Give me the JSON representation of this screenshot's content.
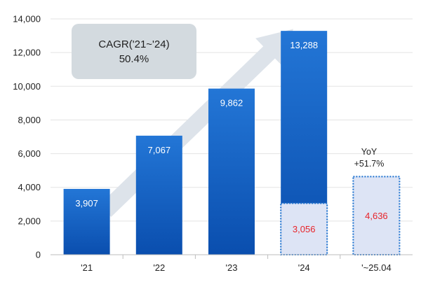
{
  "chart_data": {
    "type": "bar",
    "categories": [
      "'21",
      "'22",
      "'23",
      "'24",
      "'~25.04"
    ],
    "values": [
      3907,
      7067,
      9862,
      13288,
      4636
    ],
    "value_labels": [
      "3,907",
      "7,067",
      "9,862",
      "13,288",
      "4,636"
    ],
    "highlight": {
      "category": "'24",
      "value": 3056,
      "label": "3,056"
    },
    "ylim": [
      0,
      14000
    ],
    "yticks": [
      0,
      2000,
      4000,
      6000,
      8000,
      10000,
      12000,
      14000
    ],
    "ytick_labels": [
      "0",
      "2,000",
      "4,000",
      "6,000",
      "8,000",
      "10,000",
      "12,000",
      "14,000"
    ],
    "grid": true,
    "annotations": {
      "cagr_line1": "CAGR('21~'24)",
      "cagr_line2": "50.4%",
      "yoy_line1": "YoY",
      "yoy_line2": "+51.7%"
    },
    "colors": {
      "bar_top": "#1e6fd0",
      "bar_bottom": "#0a4fb0",
      "highlight_fill": "#dde4f5",
      "highlight_border": "#1a6fce",
      "red_text": "#e8242a",
      "arrow": "#dde3ea",
      "cagr_box": "#d3dadf"
    }
  }
}
